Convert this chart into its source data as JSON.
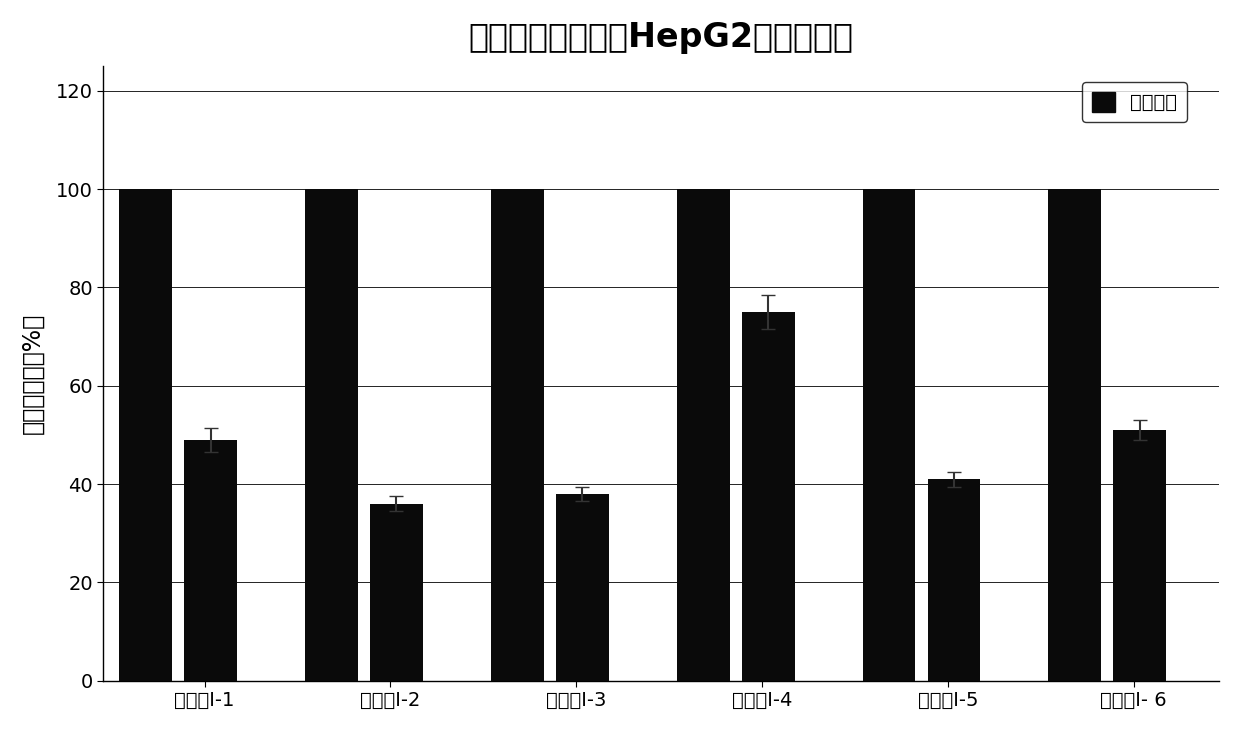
{
  "title": "化合物对肝癌细胞HepG2的抑制活性",
  "ylabel": "细胞存活率（%）",
  "groups": [
    "化合物I-1",
    "化合物I-2",
    "化合物I-3",
    "化合物I-4",
    "化合物I-5",
    "化合物I- 6"
  ],
  "bar1_values": [
    100,
    100,
    100,
    100,
    100,
    100
  ],
  "bar2_values": [
    49,
    36,
    38,
    75,
    41,
    51
  ],
  "bar2_errors": [
    2.5,
    1.5,
    1.5,
    3.5,
    1.5,
    2.0
  ],
  "bar_color": "#0a0a0a",
  "legend_label": "空白对照",
  "ylim": [
    0,
    125
  ],
  "yticks": [
    0,
    20,
    40,
    60,
    80,
    100,
    120
  ],
  "bar_width": 0.35,
  "title_fontsize": 24,
  "axis_label_fontsize": 17,
  "tick_fontsize": 14,
  "legend_fontsize": 14,
  "background_color": "#ffffff",
  "plot_bg_color": "#ffffff"
}
